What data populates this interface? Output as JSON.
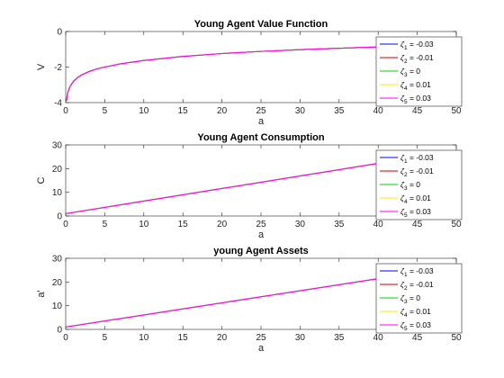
{
  "chart_data": [
    {
      "type": "line",
      "title": "Young Agent Value Function",
      "xlabel": "a",
      "ylabel": "V",
      "xlim": [
        0,
        50
      ],
      "ylim": [
        -4,
        0
      ],
      "xticks": [
        0,
        5,
        10,
        15,
        20,
        25,
        30,
        35,
        40,
        45,
        50
      ],
      "yticks": [
        -4,
        -2,
        0
      ],
      "x": [
        0.1,
        0.25,
        0.5,
        0.75,
        1,
        1.5,
        2,
        3,
        4,
        5,
        7,
        10,
        15,
        20,
        25,
        30,
        35,
        40,
        45,
        50
      ],
      "y": [
        -3.9,
        -3.45,
        -3.15,
        -2.95,
        -2.8,
        -2.6,
        -2.45,
        -2.25,
        -2.1,
        -2.0,
        -1.82,
        -1.63,
        -1.4,
        -1.24,
        -1.12,
        -1.02,
        -0.94,
        -0.87,
        -0.81,
        -0.76
      ],
      "legend_location": "right",
      "series": [
        {
          "name": "ζ₁ = -0.03",
          "color": "#0000ff"
        },
        {
          "name": "ζ₂ = -0.01",
          "color": "#cc0000"
        },
        {
          "name": "ζ₃ = 0",
          "color": "#00d400"
        },
        {
          "name": "ζ₄ = 0.01",
          "color": "#ffee00"
        },
        {
          "name": "ζ₅ = 0.03",
          "color": "#ff00ff"
        }
      ]
    },
    {
      "type": "line",
      "title": "Young Agent Consumption",
      "xlabel": "a",
      "ylabel": "C",
      "xlim": [
        0,
        50
      ],
      "ylim": [
        0,
        30
      ],
      "xticks": [
        0,
        5,
        10,
        15,
        20,
        25,
        30,
        35,
        40,
        45,
        50
      ],
      "yticks": [
        0,
        10,
        20,
        30
      ],
      "x": [
        0,
        50
      ],
      "y": [
        1.0,
        27.5
      ],
      "legend_location": "right",
      "series": [
        {
          "name": "ζ₁ = -0.03",
          "color": "#0000ff"
        },
        {
          "name": "ζ₂ = -0.01",
          "color": "#cc0000"
        },
        {
          "name": "ζ₃ = 0",
          "color": "#00d400"
        },
        {
          "name": "ζ₄ = 0.01",
          "color": "#ffee00"
        },
        {
          "name": "ζ₅ = 0.03",
          "color": "#ff00ff"
        }
      ]
    },
    {
      "type": "line",
      "title": "young Agent Assets",
      "xlabel": "a",
      "ylabel": "a'",
      "xlim": [
        0,
        50
      ],
      "ylim": [
        0,
        30
      ],
      "xticks": [
        0,
        5,
        10,
        15,
        20,
        25,
        30,
        35,
        40,
        45,
        50
      ],
      "yticks": [
        0,
        10,
        20,
        30
      ],
      "x": [
        0,
        50
      ],
      "y": [
        1.0,
        26.5
      ],
      "legend_location": "right",
      "series": [
        {
          "name": "ζ₁ = -0.03",
          "color": "#0000ff"
        },
        {
          "name": "ζ₂ = -0.01",
          "color": "#cc0000"
        },
        {
          "name": "ζ₃ = 0",
          "color": "#00d400"
        },
        {
          "name": "ζ₄ = 0.01",
          "color": "#ffee00"
        },
        {
          "name": "ζ₅ = 0.03",
          "color": "#ff00ff"
        }
      ]
    }
  ]
}
